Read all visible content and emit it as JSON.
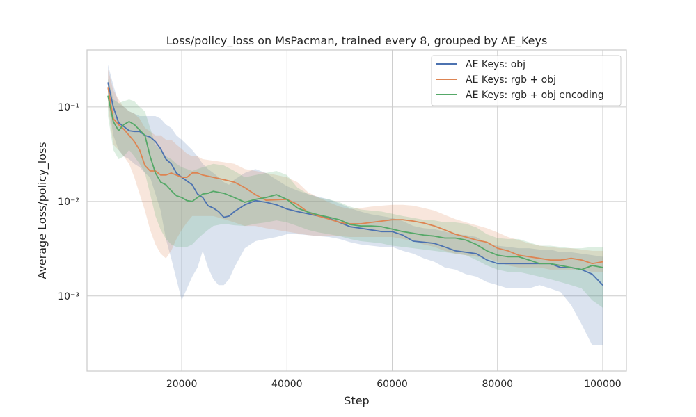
{
  "chart_data": {
    "type": "line",
    "title": "Loss/policy_loss on MsPacman, trained every 8, grouped by AE_Keys",
    "xlabel": "Step",
    "ylabel": "Average Loss/policy_loss",
    "xlim": [
      2000,
      104500
    ],
    "ylim": [
      0.00016,
      0.4
    ],
    "yscale": "log",
    "grid": true,
    "legend_position": "top-right",
    "x_ticks": [
      20000,
      40000,
      60000,
      80000,
      100000
    ],
    "x_tick_labels": [
      "20000",
      "40000",
      "60000",
      "80000",
      "100000"
    ],
    "y_ticks": [
      0.001,
      0.01,
      0.1
    ],
    "y_tick_labels": [
      "10⁻³",
      "10⁻²",
      "10⁻¹"
    ],
    "series": [
      {
        "name": "AE Keys: obj",
        "color": "#4c72b0",
        "x": [
          6000,
          7000,
          8000,
          9000,
          10000,
          11000,
          12000,
          13000,
          14000,
          15000,
          16000,
          17000,
          18000,
          19000,
          20000,
          22000,
          23000,
          24000,
          25000,
          26000,
          27000,
          28000,
          29000,
          30000,
          32000,
          34000,
          36000,
          38000,
          40000,
          42000,
          44000,
          46000,
          48000,
          50000,
          52000,
          54000,
          56000,
          58000,
          60000,
          62000,
          64000,
          66000,
          68000,
          70000,
          72000,
          74000,
          76000,
          78000,
          80000,
          82000,
          84000,
          86000,
          88000,
          90000,
          92000,
          94000,
          96000,
          98000,
          100000
        ],
        "y": [
          0.18,
          0.1,
          0.068,
          0.062,
          0.056,
          0.055,
          0.055,
          0.05,
          0.048,
          0.043,
          0.036,
          0.028,
          0.025,
          0.02,
          0.018,
          0.015,
          0.012,
          0.011,
          0.009,
          0.0085,
          0.0078,
          0.0068,
          0.007,
          0.0078,
          0.0092,
          0.0102,
          0.0098,
          0.0092,
          0.0083,
          0.0078,
          0.0074,
          0.007,
          0.0066,
          0.006,
          0.0054,
          0.0052,
          0.005,
          0.0048,
          0.0048,
          0.0044,
          0.0038,
          0.0037,
          0.0036,
          0.0033,
          0.003,
          0.0029,
          0.0028,
          0.0024,
          0.0022,
          0.0022,
          0.0022,
          0.0022,
          0.0022,
          0.0022,
          0.002,
          0.002,
          0.0019,
          0.0017,
          0.0013
        ],
        "lower": [
          0.12,
          0.05,
          0.035,
          0.03,
          0.028,
          0.025,
          0.023,
          0.02,
          0.018,
          0.012,
          0.008,
          0.004,
          0.0025,
          0.0015,
          0.0009,
          0.0016,
          0.002,
          0.003,
          0.002,
          0.0015,
          0.0013,
          0.0013,
          0.0015,
          0.002,
          0.0032,
          0.0038,
          0.004,
          0.0042,
          0.0045,
          0.0045,
          0.0044,
          0.0043,
          0.0042,
          0.004,
          0.0037,
          0.0035,
          0.0034,
          0.0033,
          0.0033,
          0.003,
          0.0028,
          0.0025,
          0.0023,
          0.002,
          0.0019,
          0.0017,
          0.0016,
          0.0014,
          0.0013,
          0.0012,
          0.0012,
          0.0012,
          0.0013,
          0.0012,
          0.0011,
          0.0008,
          0.0005,
          0.0003,
          0.0003
        ],
        "upper": [
          0.28,
          0.17,
          0.11,
          0.1,
          0.09,
          0.085,
          0.08,
          0.08,
          0.08,
          0.08,
          0.075,
          0.065,
          0.06,
          0.05,
          0.045,
          0.035,
          0.03,
          0.025,
          0.022,
          0.02,
          0.018,
          0.016,
          0.015,
          0.017,
          0.02,
          0.022,
          0.02,
          0.017,
          0.0145,
          0.013,
          0.012,
          0.0112,
          0.0105,
          0.0095,
          0.0085,
          0.0078,
          0.0073,
          0.007,
          0.0067,
          0.0062,
          0.0055,
          0.0052,
          0.0051,
          0.0048,
          0.0045,
          0.0044,
          0.0042,
          0.0036,
          0.0034,
          0.0033,
          0.0032,
          0.0032,
          0.0031,
          0.0031,
          0.0029,
          0.0029,
          0.0028,
          0.0027,
          0.0026
        ]
      },
      {
        "name": "AE Keys: rgb + obj",
        "color": "#dd8452",
        "x": [
          6000,
          7000,
          8000,
          9000,
          10000,
          11000,
          12000,
          13000,
          14000,
          15000,
          16000,
          17000,
          18000,
          19000,
          20000,
          21000,
          22000,
          23000,
          24000,
          26000,
          28000,
          30000,
          32000,
          34000,
          36000,
          38000,
          40000,
          42000,
          44000,
          46000,
          48000,
          50000,
          52000,
          54000,
          56000,
          58000,
          60000,
          62000,
          64000,
          66000,
          68000,
          70000,
          72000,
          74000,
          76000,
          78000,
          80000,
          82000,
          84000,
          86000,
          88000,
          90000,
          92000,
          94000,
          96000,
          98000,
          100000
        ],
        "y": [
          0.16,
          0.075,
          0.065,
          0.058,
          0.05,
          0.043,
          0.035,
          0.024,
          0.021,
          0.021,
          0.019,
          0.019,
          0.02,
          0.019,
          0.018,
          0.018,
          0.02,
          0.02,
          0.019,
          0.018,
          0.017,
          0.016,
          0.014,
          0.0118,
          0.0103,
          0.0104,
          0.0105,
          0.0093,
          0.0077,
          0.007,
          0.0065,
          0.006,
          0.0058,
          0.0058,
          0.006,
          0.0062,
          0.0064,
          0.0064,
          0.0062,
          0.0059,
          0.0055,
          0.005,
          0.0045,
          0.0042,
          0.0039,
          0.0037,
          0.0032,
          0.003,
          0.0027,
          0.0026,
          0.0025,
          0.0024,
          0.0024,
          0.0025,
          0.0024,
          0.0022,
          0.0023
        ],
        "lower": [
          0.1,
          0.04,
          0.035,
          0.03,
          0.025,
          0.018,
          0.012,
          0.008,
          0.005,
          0.0035,
          0.0028,
          0.0025,
          0.003,
          0.004,
          0.005,
          0.006,
          0.007,
          0.007,
          0.007,
          0.007,
          0.0065,
          0.006,
          0.0055,
          0.0055,
          0.0052,
          0.005,
          0.0048,
          0.0046,
          0.0044,
          0.0043,
          0.0043,
          0.0043,
          0.0042,
          0.0042,
          0.0042,
          0.0042,
          0.0042,
          0.004,
          0.0038,
          0.0035,
          0.0033,
          0.003,
          0.0028,
          0.0027,
          0.0026,
          0.0025,
          0.0023,
          0.0021,
          0.002,
          0.002,
          0.002,
          0.0019,
          0.0019,
          0.0019,
          0.0019,
          0.0018,
          0.0018
        ],
        "upper": [
          0.25,
          0.15,
          0.12,
          0.1,
          0.09,
          0.085,
          0.075,
          0.06,
          0.055,
          0.05,
          0.05,
          0.045,
          0.045,
          0.04,
          0.036,
          0.032,
          0.03,
          0.03,
          0.028,
          0.027,
          0.026,
          0.025,
          0.022,
          0.021,
          0.02,
          0.019,
          0.018,
          0.016,
          0.0125,
          0.011,
          0.0098,
          0.0088,
          0.0083,
          0.0085,
          0.0088,
          0.009,
          0.0092,
          0.0092,
          0.009,
          0.0085,
          0.008,
          0.0072,
          0.0065,
          0.006,
          0.0056,
          0.0052,
          0.0047,
          0.0042,
          0.0039,
          0.0036,
          0.0034,
          0.0033,
          0.0032,
          0.0032,
          0.0031,
          0.003,
          0.003
        ]
      },
      {
        "name": "AE Keys: rgb + obj encoding",
        "color": "#55a868",
        "x": [
          6000,
          7000,
          8000,
          9000,
          10000,
          11000,
          12000,
          13000,
          14000,
          15000,
          16000,
          17000,
          18000,
          19000,
          20000,
          21000,
          22000,
          23000,
          24000,
          25000,
          26000,
          28000,
          30000,
          32000,
          34000,
          36000,
          38000,
          40000,
          42000,
          44000,
          46000,
          48000,
          50000,
          52000,
          54000,
          56000,
          58000,
          60000,
          62000,
          64000,
          66000,
          68000,
          70000,
          72000,
          74000,
          76000,
          78000,
          80000,
          82000,
          84000,
          86000,
          88000,
          90000,
          92000,
          94000,
          96000,
          98000,
          100000
        ],
        "y": [
          0.13,
          0.07,
          0.056,
          0.065,
          0.07,
          0.065,
          0.057,
          0.05,
          0.03,
          0.02,
          0.016,
          0.015,
          0.013,
          0.0115,
          0.011,
          0.0102,
          0.01,
          0.011,
          0.012,
          0.0122,
          0.0128,
          0.0122,
          0.011,
          0.0098,
          0.0105,
          0.011,
          0.0118,
          0.0105,
          0.0085,
          0.0077,
          0.0072,
          0.0068,
          0.0064,
          0.0057,
          0.0055,
          0.0055,
          0.0054,
          0.0051,
          0.0048,
          0.0046,
          0.0044,
          0.0043,
          0.0041,
          0.0041,
          0.0039,
          0.0035,
          0.003,
          0.0027,
          0.0026,
          0.0026,
          0.0024,
          0.0022,
          0.0022,
          0.0021,
          0.002,
          0.0019,
          0.0021,
          0.002
        ],
        "lower": [
          0.08,
          0.035,
          0.028,
          0.03,
          0.035,
          0.03,
          0.025,
          0.02,
          0.012,
          0.007,
          0.005,
          0.004,
          0.0035,
          0.0033,
          0.0033,
          0.0033,
          0.0035,
          0.004,
          0.0045,
          0.005,
          0.0055,
          0.0058,
          0.0056,
          0.0055,
          0.0058,
          0.006,
          0.0063,
          0.006,
          0.0055,
          0.005,
          0.0047,
          0.0045,
          0.0043,
          0.004,
          0.0038,
          0.0037,
          0.0036,
          0.0034,
          0.0033,
          0.0032,
          0.0031,
          0.003,
          0.0029,
          0.0028,
          0.0027,
          0.0024,
          0.0021,
          0.0019,
          0.0018,
          0.0018,
          0.0017,
          0.0016,
          0.0015,
          0.0014,
          0.0013,
          0.0012,
          0.0009,
          0.00075
        ],
        "upper": [
          0.2,
          0.12,
          0.11,
          0.115,
          0.12,
          0.115,
          0.1,
          0.09,
          0.06,
          0.04,
          0.035,
          0.03,
          0.028,
          0.025,
          0.023,
          0.022,
          0.021,
          0.022,
          0.023,
          0.024,
          0.025,
          0.024,
          0.021,
          0.018,
          0.019,
          0.02,
          0.021,
          0.019,
          0.014,
          0.012,
          0.011,
          0.0105,
          0.0098,
          0.0088,
          0.0082,
          0.008,
          0.0078,
          0.0074,
          0.007,
          0.0067,
          0.0064,
          0.0063,
          0.006,
          0.006,
          0.0058,
          0.0053,
          0.0045,
          0.0041,
          0.004,
          0.004,
          0.0037,
          0.0034,
          0.0034,
          0.0033,
          0.0032,
          0.0032,
          0.0033,
          0.0033
        ]
      }
    ]
  }
}
